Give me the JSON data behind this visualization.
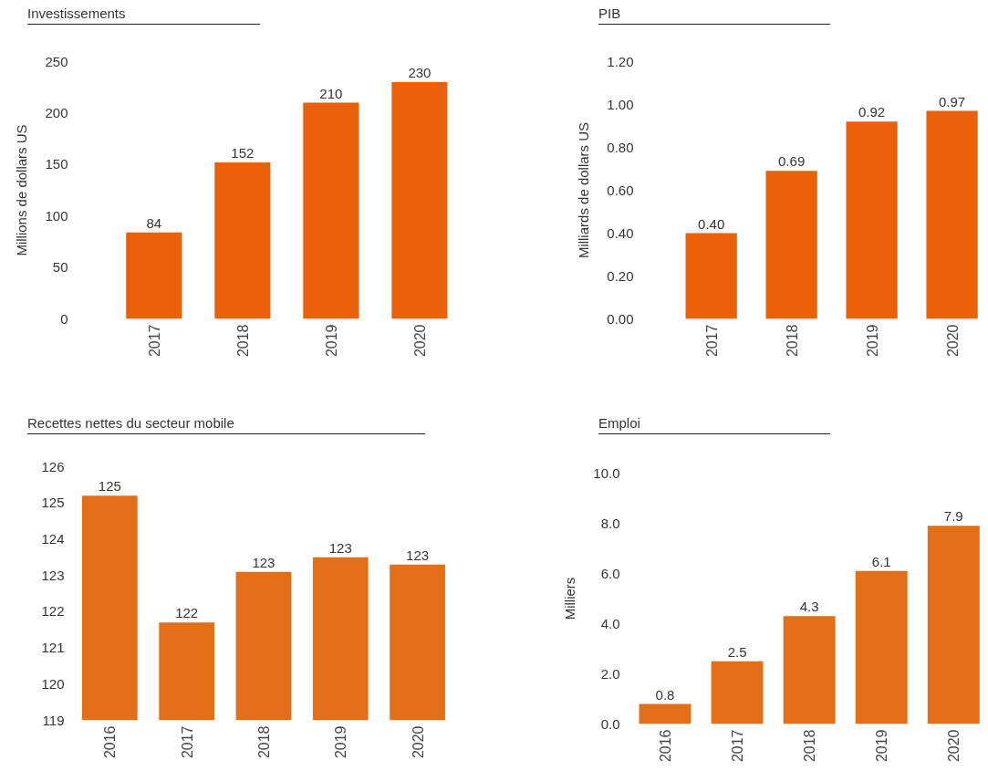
{
  "chart_data": [
    {
      "type": "bar",
      "title": "Investissements",
      "ylabel": "Millions de dollars US",
      "categories": [
        "2017",
        "2018",
        "2019",
        "2020"
      ],
      "values": [
        84,
        152,
        210,
        230
      ],
      "color": "#ea600b",
      "ylim": [
        0,
        250
      ],
      "yticks": [
        0,
        50,
        100,
        150,
        200,
        250
      ],
      "data_labels": true
    },
    {
      "type": "bar",
      "title": "PIB",
      "ylabel": "Milliards de dollars US",
      "categories": [
        "2017",
        "2018",
        "2019",
        "2020"
      ],
      "values": [
        0.4,
        0.69,
        0.92,
        0.97
      ],
      "value_labels": [
        "0.40",
        "0.69",
        "0.92",
        "0.97"
      ],
      "color": "#ea600b",
      "ylim": [
        0,
        1.2
      ],
      "yticks": [
        {
          "value": 0,
          "label": "0.00"
        },
        {
          "value": 0.2,
          "label": "0.20"
        },
        {
          "value": 0.4,
          "label": "0.40"
        },
        {
          "value": 0.6,
          "label": "0.60"
        },
        {
          "value": 0.8,
          "label": "0.80"
        },
        {
          "value": 1.0,
          "label": "1.00"
        },
        {
          "value": 1.2,
          "label": "1.20"
        }
      ]
    },
    {
      "type": "bar",
      "title": "Recettes nettes du secteur mobile",
      "categories": [
        "2016",
        "2017",
        "2018",
        "2019",
        "2020"
      ],
      "values": [
        125.2,
        121.7,
        123.1,
        123.5,
        123.3
      ],
      "value_labels": [
        "125",
        "122",
        "123",
        "123",
        "123"
      ],
      "color": "#e26e17",
      "ylim": [
        119,
        126
      ],
      "yticks": [
        119,
        120,
        121,
        122,
        123,
        124,
        125,
        126
      ]
    },
    {
      "type": "bar",
      "title": "Emploi",
      "ylabel": "Milliers",
      "categories": [
        "2016",
        "2017",
        "2018",
        "2019",
        "2020"
      ],
      "values": [
        0.8,
        2.5,
        4.3,
        6.1,
        7.9
      ],
      "color": "#e26e17",
      "ylim": [
        0,
        10
      ],
      "yticks": [
        {
          "value": 0,
          "label": "0.0"
        },
        {
          "value": 2,
          "label": "2.0"
        },
        {
          "value": 4,
          "label": "4.0"
        },
        {
          "value": 6,
          "label": "6.0"
        },
        {
          "value": 8,
          "label": "8.0"
        },
        {
          "value": 10,
          "label": "10.0"
        }
      ],
      "data_labels": true
    }
  ]
}
